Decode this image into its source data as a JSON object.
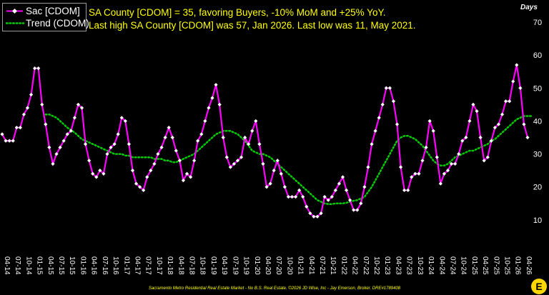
{
  "legend": {
    "series_1": "Sac [CDOM]",
    "series_2": "Trend (CDOM)"
  },
  "headline": {
    "line_1": "SA County [CDOM] = 35, favoring Buyers, -10% MoM and +25% YoY.",
    "line_2": "Last high SA County [CDOM] was 57, Jan 2026. Last low was 11, May 2021."
  },
  "footer_text": "Sacramento Metro Residential Real Estate Market - No B.S. Real Estate. ©2026 JD Wise, Inc - Jay Emerson, Broker. DRE#1789408",
  "logo_glyph": "E",
  "colors": {
    "background": "#000000",
    "series_1": "#ff00ff",
    "series_2": "#00cc00",
    "headline": "#ffff00",
    "axis_text": "#ffffff",
    "logo": "#ffd700"
  },
  "chart_data": {
    "type": "line",
    "ylabel": "Days",
    "y_axis_side": "right",
    "ylim": [
      0,
      70
    ],
    "yticks": [
      10,
      20,
      30,
      40,
      50,
      60,
      70
    ],
    "grid": false,
    "legend_position": "top-left",
    "x_tick_labels": [
      "04-14",
      "07-14",
      "10-14",
      "01-15",
      "04-15",
      "07-15",
      "10-15",
      "01-16",
      "04-16",
      "07-16",
      "10-16",
      "01-17",
      "04-17",
      "07-17",
      "10-17",
      "01-18",
      "04-18",
      "07-18",
      "10-18",
      "01-19",
      "04-19",
      "07-19",
      "10-19",
      "01-20",
      "04-20",
      "07-20",
      "10-20",
      "01-21",
      "04-21",
      "07-21",
      "10-21",
      "01-22",
      "04-22",
      "07-22",
      "10-22",
      "01-23",
      "04-23",
      "07-23",
      "10-23",
      "01-24",
      "04-24",
      "07-24",
      "10-24",
      "01-25",
      "04-25",
      "07-25",
      "10-25",
      "01-26",
      "04-26"
    ],
    "series": [
      {
        "name": "Sac [CDOM]",
        "style": "solid line with diamond markers",
        "values": [
          36,
          34,
          34,
          34,
          38,
          38,
          42,
          44,
          48,
          56,
          56,
          45,
          39,
          32,
          27,
          30,
          32,
          34,
          36,
          37,
          41,
          45,
          44,
          33,
          28,
          24,
          23,
          25,
          24,
          30,
          32,
          33,
          36,
          41,
          40,
          33,
          25,
          21,
          20,
          19,
          23,
          25,
          27,
          30,
          32,
          35,
          38,
          35,
          31,
          28,
          22,
          24,
          23,
          28,
          34,
          36,
          40,
          44,
          47,
          51,
          45,
          35,
          29,
          26,
          27,
          28,
          29,
          35,
          33,
          37,
          40,
          33,
          27,
          20,
          21,
          25,
          28,
          24,
          20,
          17,
          17,
          17,
          19,
          17,
          14,
          12,
          11,
          11,
          12,
          17,
          16,
          17,
          19,
          21,
          23,
          19,
          16,
          13,
          13,
          15,
          20,
          26,
          33,
          37,
          41,
          45,
          50,
          50,
          46,
          39,
          26,
          19,
          19,
          23,
          24,
          24,
          28,
          32,
          40,
          37,
          29,
          21,
          24,
          25,
          27,
          27,
          30,
          34,
          35,
          40,
          45,
          43,
          35,
          28,
          29,
          34,
          38,
          39,
          42,
          46,
          46,
          52,
          57,
          50,
          39,
          35
        ]
      },
      {
        "name": "Trend (CDOM)",
        "style": "dotted line",
        "values": [
          null,
          null,
          null,
          null,
          null,
          null,
          null,
          null,
          null,
          null,
          null,
          null,
          42,
          42,
          41.5,
          41,
          40,
          39,
          38,
          37.3,
          36.5,
          35.5,
          34.5,
          34,
          33.5,
          33,
          32.5,
          32,
          31.5,
          31,
          30.5,
          30,
          30,
          30,
          29.5,
          29.5,
          29,
          29,
          29,
          29,
          29,
          29,
          28.5,
          28.5,
          28.5,
          28,
          28,
          27.5,
          27.5,
          28,
          28.5,
          29,
          29.5,
          30,
          31,
          32,
          33,
          34,
          35,
          36,
          36.5,
          37,
          37,
          37,
          36.5,
          36,
          35,
          34,
          32.5,
          31,
          30.5,
          30,
          30,
          29.5,
          29,
          28,
          27,
          26,
          25,
          24,
          23,
          22,
          21,
          20,
          19,
          18,
          17,
          16,
          15.5,
          15,
          14.8,
          14.8,
          15,
          15,
          15,
          15.2,
          15.5,
          15.8,
          16,
          16.5,
          17,
          18.5,
          20,
          22,
          24,
          26,
          28,
          30,
          32,
          34,
          35,
          35.5,
          35.5,
          35,
          34.5,
          33.5,
          32.5,
          31,
          29.5,
          28,
          27,
          26.5,
          26.5,
          27,
          28,
          29,
          29.5,
          30,
          30.5,
          31,
          31,
          31.5,
          32,
          32.5,
          33,
          34,
          34.5,
          35.5,
          36.5,
          37.5,
          38.5,
          39.5,
          40.5,
          41,
          41.5,
          41.5,
          41.5
        ]
      }
    ]
  }
}
